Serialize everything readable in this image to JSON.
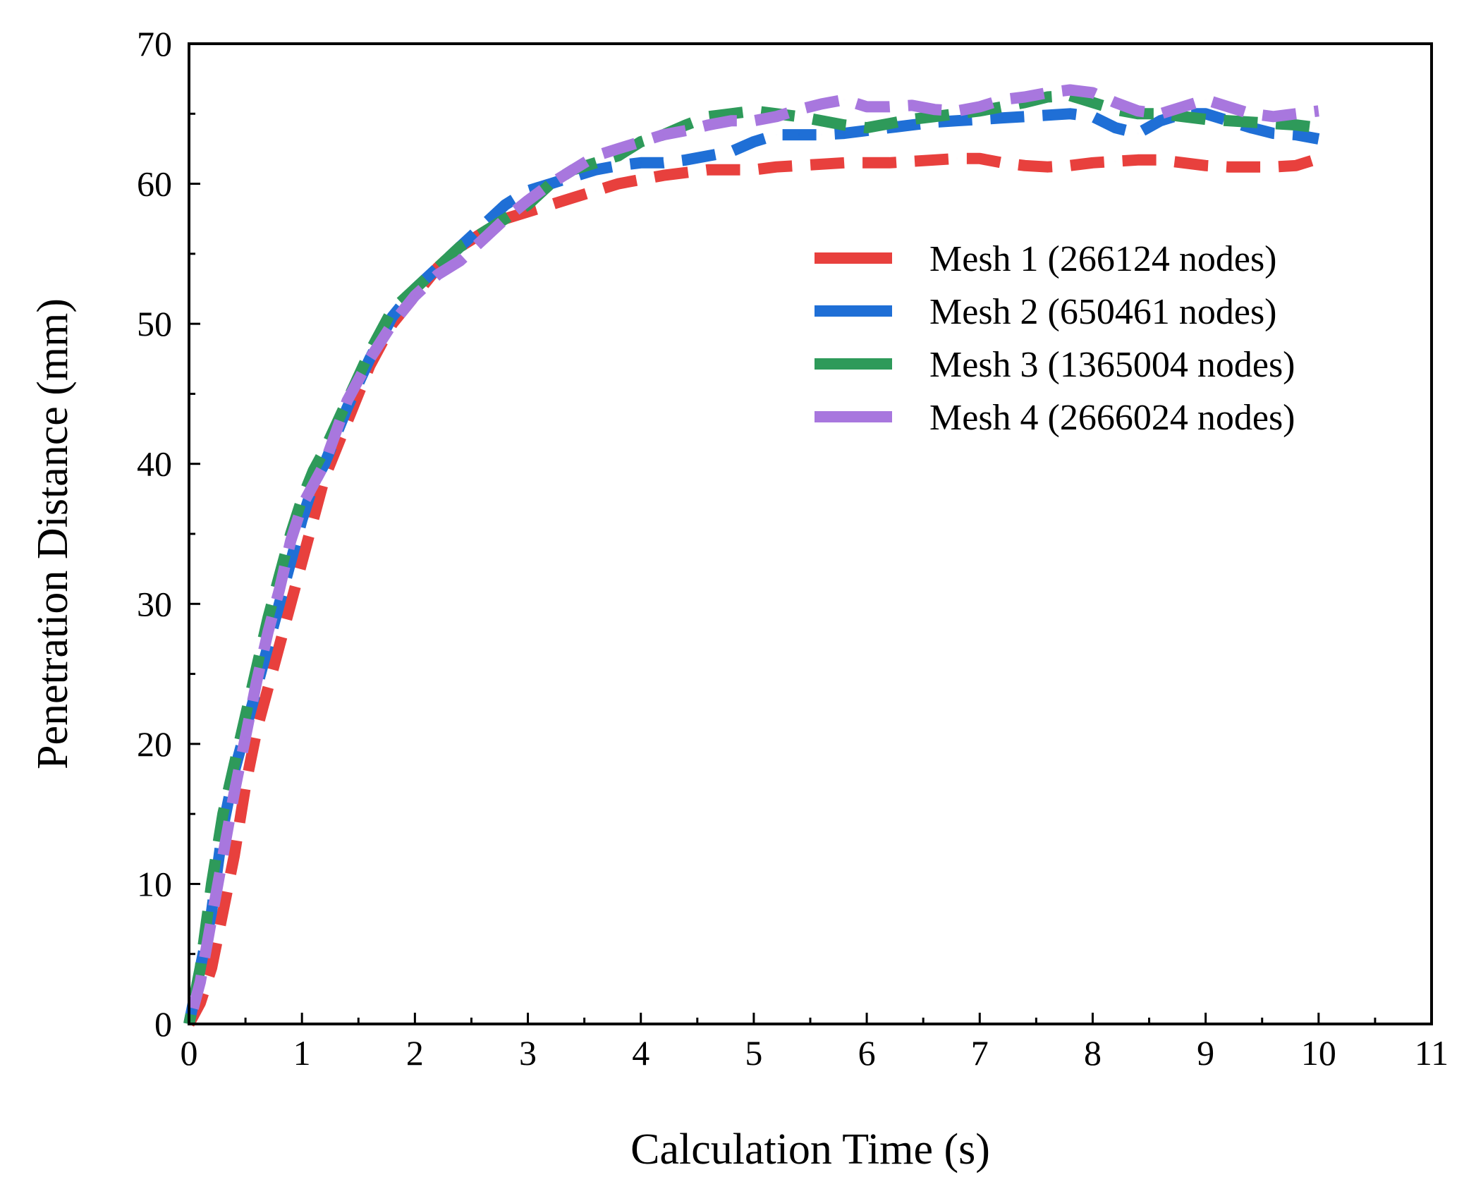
{
  "chart_data": {
    "type": "line",
    "title": "",
    "xlabel": "Calculation Time (s)",
    "ylabel": "Penetration Distance (mm)",
    "xlim": [
      0,
      11
    ],
    "ylim": [
      0,
      70
    ],
    "x_ticks": [
      0,
      1,
      2,
      3,
      4,
      5,
      6,
      7,
      8,
      9,
      10,
      11
    ],
    "y_ticks": [
      0,
      10,
      20,
      30,
      40,
      50,
      60,
      70
    ],
    "x_tick_labels": [
      "0",
      "1",
      "2",
      "3",
      "4",
      "5",
      "6",
      "7",
      "8",
      "9",
      "10",
      "11"
    ],
    "y_tick_labels": [
      "0",
      "10",
      "20",
      "30",
      "40",
      "50",
      "60",
      "70"
    ],
    "grid": false,
    "legend_position": "upper-right",
    "line_style": "dashed",
    "series": [
      {
        "name": "Mesh 1 (266124 nodes)",
        "color": "#e8403d",
        "x": [
          0,
          0.1,
          0.2,
          0.3,
          0.4,
          0.5,
          0.6,
          0.7,
          0.8,
          0.9,
          1.0,
          1.1,
          1.2,
          1.4,
          1.6,
          1.8,
          2.0,
          2.2,
          2.4,
          2.6,
          2.8,
          3.0,
          3.2,
          3.4,
          3.6,
          3.8,
          4.0,
          4.2,
          4.4,
          4.6,
          4.8,
          5.0,
          5.2,
          5.4,
          5.6,
          5.8,
          6.0,
          6.2,
          6.4,
          6.6,
          6.8,
          7.0,
          7.2,
          7.4,
          7.6,
          7.8,
          8.0,
          8.2,
          8.4,
          8.6,
          8.8,
          9.0,
          9.2,
          9.4,
          9.6,
          9.8,
          10.0
        ],
        "y": [
          0,
          1.5,
          4,
          8,
          12,
          17,
          21,
          24,
          27,
          30,
          33,
          36,
          39,
          43,
          47,
          50,
          52,
          54,
          55.5,
          56.5,
          57.5,
          58,
          58.5,
          59,
          59.5,
          60,
          60.3,
          60.6,
          60.8,
          61,
          61,
          61,
          61.2,
          61.3,
          61.4,
          61.5,
          61.5,
          61.5,
          61.6,
          61.7,
          61.8,
          61.8,
          61.5,
          61.3,
          61.2,
          61.3,
          61.5,
          61.6,
          61.7,
          61.7,
          61.5,
          61.3,
          61.2,
          61.2,
          61.2,
          61.3,
          61.8
        ]
      },
      {
        "name": "Mesh 2 (650461 nodes)",
        "color": "#1f6fd6",
        "x": [
          0,
          0.1,
          0.2,
          0.3,
          0.4,
          0.5,
          0.6,
          0.7,
          0.8,
          0.9,
          1.0,
          1.1,
          1.2,
          1.4,
          1.6,
          1.8,
          2.0,
          2.2,
          2.4,
          2.6,
          2.8,
          3.0,
          3.2,
          3.4,
          3.6,
          3.8,
          4.0,
          4.2,
          4.4,
          4.6,
          4.8,
          5.0,
          5.2,
          5.4,
          5.6,
          5.8,
          6.0,
          6.2,
          6.4,
          6.6,
          6.8,
          7.0,
          7.2,
          7.4,
          7.6,
          7.8,
          8.0,
          8.2,
          8.4,
          8.6,
          8.8,
          9.0,
          9.2,
          9.4,
          9.6,
          9.8,
          10.0
        ],
        "y": [
          0,
          4,
          8,
          14,
          18,
          21,
          24,
          27,
          30,
          33,
          36,
          38.5,
          40,
          44,
          47.5,
          50.5,
          52.5,
          54,
          55.5,
          57,
          58.5,
          59.5,
          60,
          60.5,
          61,
          61.3,
          61.5,
          61.5,
          61.7,
          62,
          62.3,
          63,
          63.5,
          63.5,
          63.5,
          63.6,
          63.8,
          64,
          64.2,
          64.4,
          64.5,
          64.6,
          64.7,
          64.8,
          64.9,
          65,
          64.8,
          64,
          63.6,
          64.5,
          65,
          65,
          64.5,
          64,
          63.6,
          63.5,
          63.2
        ]
      },
      {
        "name": "Mesh 3 (1365004 nodes)",
        "color": "#2e9a5a",
        "x": [
          0,
          0.1,
          0.2,
          0.3,
          0.4,
          0.5,
          0.6,
          0.7,
          0.8,
          0.9,
          1.0,
          1.1,
          1.2,
          1.4,
          1.6,
          1.8,
          2.0,
          2.2,
          2.4,
          2.6,
          2.8,
          3.0,
          3.2,
          3.4,
          3.6,
          3.8,
          4.0,
          4.2,
          4.4,
          4.6,
          4.8,
          5.0,
          5.2,
          5.4,
          5.6,
          5.8,
          6.0,
          6.2,
          6.4,
          6.6,
          6.8,
          7.0,
          7.2,
          7.4,
          7.6,
          7.8,
          8.0,
          8.2,
          8.4,
          8.6,
          8.8,
          9.0,
          9.2,
          9.4,
          9.6,
          9.8,
          10.0
        ],
        "y": [
          0,
          4,
          10,
          15,
          18.5,
          22,
          25.5,
          29,
          32,
          35,
          37.5,
          39.5,
          41,
          44.5,
          48,
          51,
          52.5,
          54,
          55.5,
          56.5,
          57.5,
          58.5,
          60,
          61,
          61.5,
          62,
          63,
          63.5,
          64.2,
          64.8,
          65,
          65.2,
          65,
          64.8,
          64.5,
          64.2,
          64,
          64.3,
          64.6,
          64.8,
          65,
          65.2,
          65.5,
          65.8,
          66.2,
          66.3,
          65.8,
          65.3,
          65,
          65,
          64.8,
          64.6,
          64.5,
          64.4,
          64.3,
          64.2,
          64
        ]
      },
      {
        "name": "Mesh 4 (2666024 nodes)",
        "color": "#a877de",
        "x": [
          0,
          0.1,
          0.2,
          0.3,
          0.4,
          0.5,
          0.6,
          0.7,
          0.8,
          0.9,
          1.0,
          1.1,
          1.2,
          1.4,
          1.6,
          1.8,
          2.0,
          2.2,
          2.4,
          2.6,
          2.8,
          3.0,
          3.2,
          3.4,
          3.6,
          3.8,
          4.0,
          4.2,
          4.4,
          4.6,
          4.8,
          5.0,
          5.2,
          5.4,
          5.6,
          5.8,
          6.0,
          6.2,
          6.4,
          6.6,
          6.8,
          7.0,
          7.2,
          7.4,
          7.6,
          7.8,
          8.0,
          8.2,
          8.4,
          8.6,
          8.8,
          9.0,
          9.2,
          9.4,
          9.6,
          9.8,
          10.0
        ],
        "y": [
          0,
          3,
          7.5,
          12,
          16.5,
          20.5,
          24.5,
          28,
          31,
          34.5,
          37,
          38.5,
          40,
          44.5,
          47.5,
          50,
          52,
          53.5,
          54.5,
          56,
          57.5,
          58.8,
          60,
          61,
          62,
          62.5,
          63,
          63.5,
          63.8,
          64.2,
          64.5,
          64.5,
          64.8,
          65.3,
          65.7,
          66,
          65.5,
          65.5,
          65.6,
          65.3,
          65.2,
          65.5,
          66,
          66.2,
          66.5,
          66.7,
          66.5,
          65.8,
          65.2,
          65,
          65.5,
          66,
          65.5,
          65,
          64.8,
          65,
          65.2
        ]
      }
    ]
  }
}
